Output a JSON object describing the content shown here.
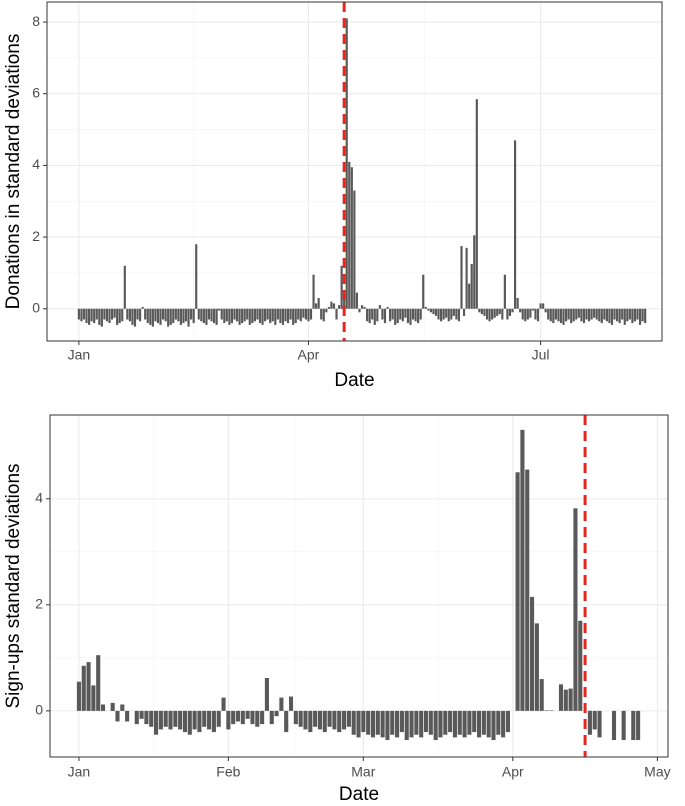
{
  "chart_data": [
    {
      "type": "bar",
      "x_label": "Date",
      "y_label": "Donations in standard deviations",
      "color": "#595959",
      "grid": true,
      "xlim": [
        -12.5,
        228.6
      ],
      "ylim": [
        -0.9,
        8.56
      ],
      "xticks": [
        {
          "value": 0,
          "label": "Jan"
        },
        {
          "value": 90,
          "label": "Apr"
        },
        {
          "value": 181,
          "label": "Jul"
        }
      ],
      "yticks": [
        0,
        2,
        4,
        6,
        8
      ],
      "vline": {
        "x": 104,
        "color": "#e8251f"
      },
      "x": [
        0,
        1,
        2,
        3,
        4,
        5,
        6,
        7,
        8,
        9,
        10,
        11,
        12,
        13,
        14,
        15,
        16,
        17,
        18,
        19,
        20,
        21,
        22,
        23,
        24,
        25,
        26,
        27,
        28,
        29,
        30,
        31,
        32,
        33,
        34,
        35,
        36,
        37,
        38,
        39,
        40,
        41,
        42,
        43,
        44,
        45,
        46,
        47,
        48,
        49,
        50,
        51,
        52,
        53,
        54,
        55,
        56,
        57,
        58,
        59,
        60,
        61,
        62,
        63,
        64,
        65,
        66,
        67,
        68,
        69,
        70,
        71,
        72,
        73,
        74,
        75,
        76,
        77,
        78,
        79,
        80,
        81,
        82,
        83,
        84,
        85,
        86,
        87,
        88,
        89,
        90,
        91,
        92,
        93,
        94,
        95,
        96,
        97,
        98,
        99,
        100,
        101,
        102,
        103,
        104,
        105,
        106,
        107,
        108,
        109,
        110,
        111,
        112,
        113,
        114,
        115,
        116,
        117,
        118,
        119,
        120,
        121,
        122,
        123,
        124,
        125,
        126,
        127,
        128,
        129,
        130,
        131,
        132,
        133,
        134,
        135,
        136,
        137,
        138,
        139,
        140,
        141,
        142,
        143,
        144,
        145,
        146,
        147,
        148,
        149,
        150,
        151,
        152,
        153,
        154,
        155,
        156,
        157,
        158,
        159,
        160,
        161,
        162,
        163,
        164,
        165,
        166,
        167,
        168,
        169,
        170,
        171,
        172,
        173,
        174,
        175,
        176,
        177,
        178,
        179,
        180,
        181,
        182,
        183,
        184,
        185,
        186,
        187,
        188,
        189,
        190,
        191,
        192,
        193,
        194,
        195,
        196,
        197,
        198,
        199,
        200,
        201,
        202,
        203,
        204,
        205,
        206,
        207,
        208,
        209,
        210,
        211,
        212,
        213,
        214,
        215,
        216,
        217,
        218,
        219,
        220,
        221,
        222
      ],
      "values": [
        -0.3,
        -0.35,
        -0.3,
        -0.4,
        -0.45,
        -0.35,
        -0.4,
        -0.3,
        -0.45,
        -0.5,
        -0.3,
        -0.35,
        -0.4,
        -0.3,
        -0.25,
        -0.45,
        -0.4,
        -0.35,
        1.2,
        -0.3,
        -0.35,
        -0.45,
        -0.5,
        -0.3,
        -0.35,
        0.05,
        -0.3,
        -0.4,
        -0.45,
        -0.5,
        -0.35,
        -0.4,
        -0.45,
        -0.3,
        -0.35,
        -0.5,
        -0.45,
        -0.4,
        -0.3,
        -0.35,
        -0.45,
        -0.4,
        -0.35,
        -0.5,
        -0.3,
        -0.4,
        1.8,
        -0.3,
        -0.35,
        -0.4,
        -0.45,
        -0.3,
        -0.35,
        -0.4,
        -0.45,
        -0.05,
        -0.3,
        -0.4,
        -0.35,
        -0.45,
        -0.4,
        -0.3,
        -0.35,
        -0.45,
        -0.4,
        -0.35,
        -0.3,
        -0.45,
        -0.4,
        -0.35,
        -0.3,
        -0.4,
        -0.45,
        -0.35,
        -0.3,
        -0.4,
        -0.35,
        -0.45,
        -0.3,
        -0.4,
        -0.45,
        -0.35,
        -0.4,
        -0.3,
        -0.45,
        -0.4,
        -0.3,
        -0.35,
        -0.25,
        -0.3,
        -0.35,
        -0.3,
        0.95,
        0.15,
        0.3,
        -0.3,
        -0.35,
        -0.1,
        0.05,
        0.2,
        0.15,
        -0.3,
        0.1,
        1.2,
        0.5,
        8.1,
        4.1,
        3.95,
        3.3,
        0.45,
        -0.1,
        0.1,
        0.05,
        -0.35,
        -0.4,
        -0.3,
        -0.45,
        -0.35,
        0.1,
        -0.3,
        -0.4,
        0.05,
        -0.35,
        -0.3,
        -0.45,
        -0.4,
        -0.3,
        -0.35,
        -0.25,
        -0.4,
        -0.45,
        -0.3,
        -0.35,
        -0.4,
        -0.3,
        0.95,
        0.05,
        -0.05,
        -0.1,
        -0.15,
        -0.2,
        -0.3,
        -0.35,
        -0.3,
        -0.25,
        -0.35,
        -0.3,
        -0.2,
        -0.3,
        -0.35,
        1.75,
        -0.2,
        1.7,
        0.7,
        1.25,
        2.05,
        5.85,
        -0.1,
        -0.15,
        -0.2,
        -0.3,
        -0.35,
        -0.3,
        -0.25,
        -0.2,
        -0.15,
        -0.3,
        0.95,
        -0.3,
        -0.2,
        -0.1,
        4.7,
        0.3,
        -0.1,
        -0.3,
        -0.35,
        -0.3,
        -0.25,
        -0.05,
        -0.3,
        -0.35,
        0.15,
        0.15,
        -0.1,
        -0.3,
        -0.35,
        -0.4,
        -0.3,
        -0.35,
        -0.4,
        -0.45,
        -0.35,
        -0.3,
        -0.4,
        -0.35,
        -0.3,
        -0.25,
        -0.35,
        -0.4,
        -0.3,
        -0.35,
        -0.3,
        -0.25,
        -0.3,
        -0.35,
        -0.4,
        -0.3,
        -0.35,
        -0.4,
        -0.45,
        -0.3,
        -0.35,
        -0.4,
        -0.3,
        -0.45,
        -0.35,
        -0.3,
        -0.4,
        -0.35,
        -0.3,
        -0.45,
        -0.35,
        -0.4
      ]
    },
    {
      "type": "bar",
      "x_label": "Date",
      "y_label": "Sign-ups standard deviations",
      "color": "#595959",
      "grid": true,
      "xlim": [
        -6,
        122.2
      ],
      "ylim": [
        -0.87,
        5.58
      ],
      "xticks": [
        {
          "value": 0,
          "label": "Jan"
        },
        {
          "value": 31,
          "label": "Feb"
        },
        {
          "value": 59,
          "label": "Mar"
        },
        {
          "value": 90,
          "label": "Apr"
        },
        {
          "value": 120,
          "label": "May"
        }
      ],
      "yticks": [
        0,
        2,
        4
      ],
      "vline": {
        "x": 105,
        "color": "#e8251f"
      },
      "x": [
        0,
        1,
        2,
        3,
        4,
        5,
        6,
        7,
        8,
        9,
        10,
        11,
        12,
        13,
        14,
        15,
        16,
        17,
        18,
        19,
        20,
        21,
        22,
        23,
        24,
        25,
        26,
        27,
        28,
        29,
        30,
        31,
        32,
        33,
        34,
        35,
        36,
        37,
        38,
        39,
        40,
        41,
        42,
        43,
        44,
        45,
        46,
        47,
        48,
        49,
        50,
        51,
        52,
        53,
        54,
        55,
        56,
        57,
        58,
        59,
        60,
        61,
        62,
        63,
        64,
        65,
        66,
        67,
        68,
        69,
        70,
        71,
        72,
        73,
        74,
        75,
        76,
        77,
        78,
        79,
        80,
        81,
        82,
        83,
        84,
        85,
        86,
        87,
        88,
        89,
        90,
        91,
        92,
        93,
        94,
        95,
        96,
        97,
        98,
        99,
        100,
        101,
        102,
        103,
        104,
        105,
        106,
        107,
        108,
        109,
        110,
        111,
        112,
        113,
        114,
        115,
        116
      ],
      "values": [
        0.55,
        0.85,
        0.92,
        0.48,
        1.05,
        0.12,
        null,
        0.15,
        -0.2,
        0.12,
        -0.2,
        null,
        -0.25,
        -0.15,
        -0.25,
        -0.3,
        -0.45,
        -0.35,
        -0.3,
        -0.35,
        -0.3,
        -0.35,
        -0.4,
        -0.45,
        -0.35,
        -0.4,
        -0.3,
        -0.35,
        -0.4,
        -0.3,
        0.25,
        -0.35,
        -0.25,
        -0.2,
        -0.25,
        -0.15,
        -0.25,
        -0.3,
        -0.25,
        0.62,
        -0.25,
        -0.1,
        0.25,
        -0.4,
        0.27,
        -0.25,
        -0.3,
        -0.35,
        -0.4,
        -0.3,
        -0.35,
        -0.4,
        -0.3,
        -0.35,
        -0.4,
        -0.35,
        -0.3,
        -0.45,
        -0.5,
        -0.4,
        -0.45,
        -0.5,
        -0.45,
        -0.5,
        -0.55,
        -0.45,
        -0.5,
        -0.4,
        -0.55,
        -0.5,
        -0.45,
        -0.5,
        -0.4,
        -0.45,
        -0.55,
        -0.5,
        -0.45,
        -0.4,
        -0.5,
        -0.45,
        -0.5,
        -0.45,
        -0.4,
        -0.5,
        -0.45,
        -0.5,
        -0.55,
        -0.45,
        -0.5,
        -0.4,
        null,
        4.5,
        5.3,
        4.55,
        2.15,
        1.65,
        0.6,
        0.01,
        0.01,
        null,
        0.5,
        0.4,
        0.42,
        3.82,
        1.7,
        null,
        -0.45,
        -0.35,
        -0.5,
        null,
        null,
        -0.55,
        null,
        -0.55,
        null,
        -0.55,
        -0.55
      ]
    }
  ]
}
